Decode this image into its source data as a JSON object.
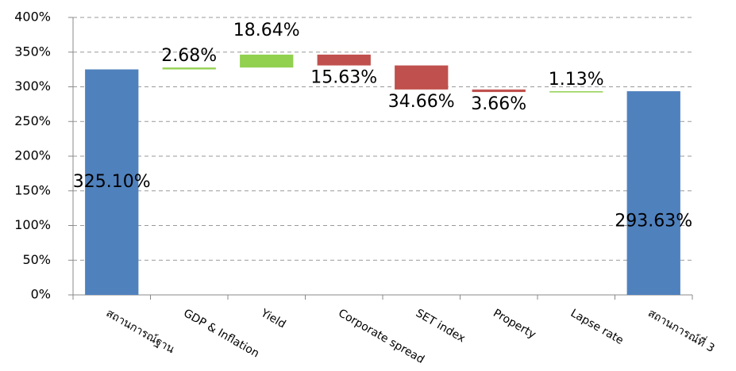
{
  "chart_data": {
    "type": "waterfall",
    "categories": [
      "สถานการณ์ฐาน",
      "GDP & Inflation",
      "Yield",
      "Corporate spread",
      "SET index",
      "Property",
      "Lapse rate",
      "สถานการณ์ที่ 3"
    ],
    "values": [
      325.1,
      2.68,
      18.64,
      -15.63,
      -34.66,
      -3.66,
      1.13,
      293.63
    ],
    "value_labels": [
      "325.10%",
      "2.68%",
      "18.64%",
      "15.63%",
      "34.66%",
      "3.66%",
      "1.13%",
      "293.63%"
    ],
    "measure": [
      "total",
      "relative",
      "relative",
      "relative",
      "relative",
      "relative",
      "relative",
      "total"
    ],
    "colors": {
      "total": "#4f81bd",
      "increase": "#92d050",
      "decrease": "#c0504d"
    },
    "ylim": [
      0,
      400
    ],
    "yticks": [
      {
        "value": 0,
        "label": "0%"
      },
      {
        "value": 50,
        "label": "50%"
      },
      {
        "value": 100,
        "label": "100%"
      },
      {
        "value": 150,
        "label": "150%"
      },
      {
        "value": 200,
        "label": "200%"
      },
      {
        "value": 250,
        "label": "250%"
      },
      {
        "value": 300,
        "label": "300%"
      },
      {
        "value": 350,
        "label": "350%"
      },
      {
        "value": 400,
        "label": "400%"
      }
    ],
    "grid": true
  }
}
